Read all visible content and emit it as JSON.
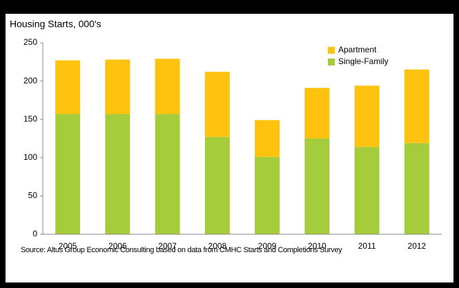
{
  "chart_data": {
    "type": "stacked_bar",
    "title": "Housing Starts, 000's",
    "categories": [
      "2005",
      "2006",
      "2007",
      "2008",
      "2009",
      "2010",
      "2011",
      "2012"
    ],
    "series": [
      {
        "name": "Single-Family",
        "color": "#a5cc3a",
        "values": [
          157,
          157,
          157,
          127,
          101,
          125,
          114,
          119
        ]
      },
      {
        "name": "Apartment",
        "color": "#ffc20e",
        "values": [
          70,
          71,
          72,
          85,
          48,
          66,
          80,
          96
        ]
      }
    ],
    "ylim": [
      0,
      250
    ],
    "yticks": [
      0,
      50,
      100,
      150,
      200,
      250
    ],
    "grid": false,
    "legend": "top-right",
    "source": "Source: Altus Group Economic Consulting based on data from CMHC Starts and Completions Survey"
  }
}
